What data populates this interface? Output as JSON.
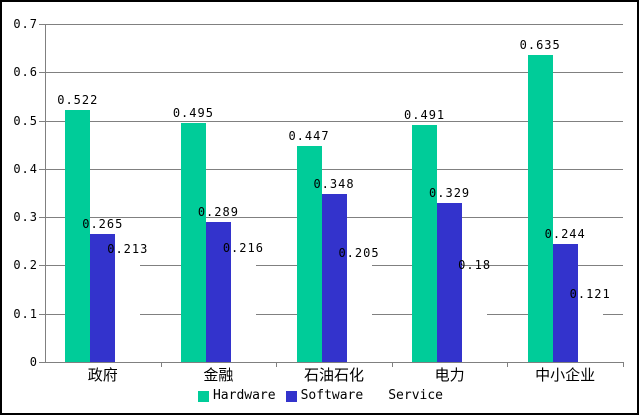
{
  "chart_data": {
    "type": "bar",
    "title": "",
    "xlabel": "",
    "ylabel": "",
    "categories": [
      "政府",
      "金融",
      "石油石化",
      "电力",
      "中小企业"
    ],
    "series": [
      {
        "name": "Hardware",
        "color": "#00CC99",
        "values": [
          0.522,
          0.495,
          0.447,
          0.491,
          0.635
        ]
      },
      {
        "name": "Software",
        "color": "#3333CC",
        "values": [
          0.265,
          0.289,
          0.348,
          0.329,
          0.244
        ]
      },
      {
        "name": "Service",
        "color": "#FFFFFF",
        "values": [
          0.213,
          0.216,
          0.205,
          0.18,
          0.121
        ]
      }
    ],
    "ylim": [
      0,
      0.7
    ],
    "ytick_step": 0.1,
    "ytick_labels": [
      "0",
      "0.1",
      "0.2",
      "0.3",
      "0.4",
      "0.5",
      "0.6",
      "0.7"
    ],
    "grid": true,
    "data_labels": true,
    "legend_position": "bottom"
  },
  "colors": {
    "gridline": "#808080",
    "axis": "#808080",
    "frame_border": "#000000",
    "background": "#FFFFFF",
    "text": "#000000"
  }
}
